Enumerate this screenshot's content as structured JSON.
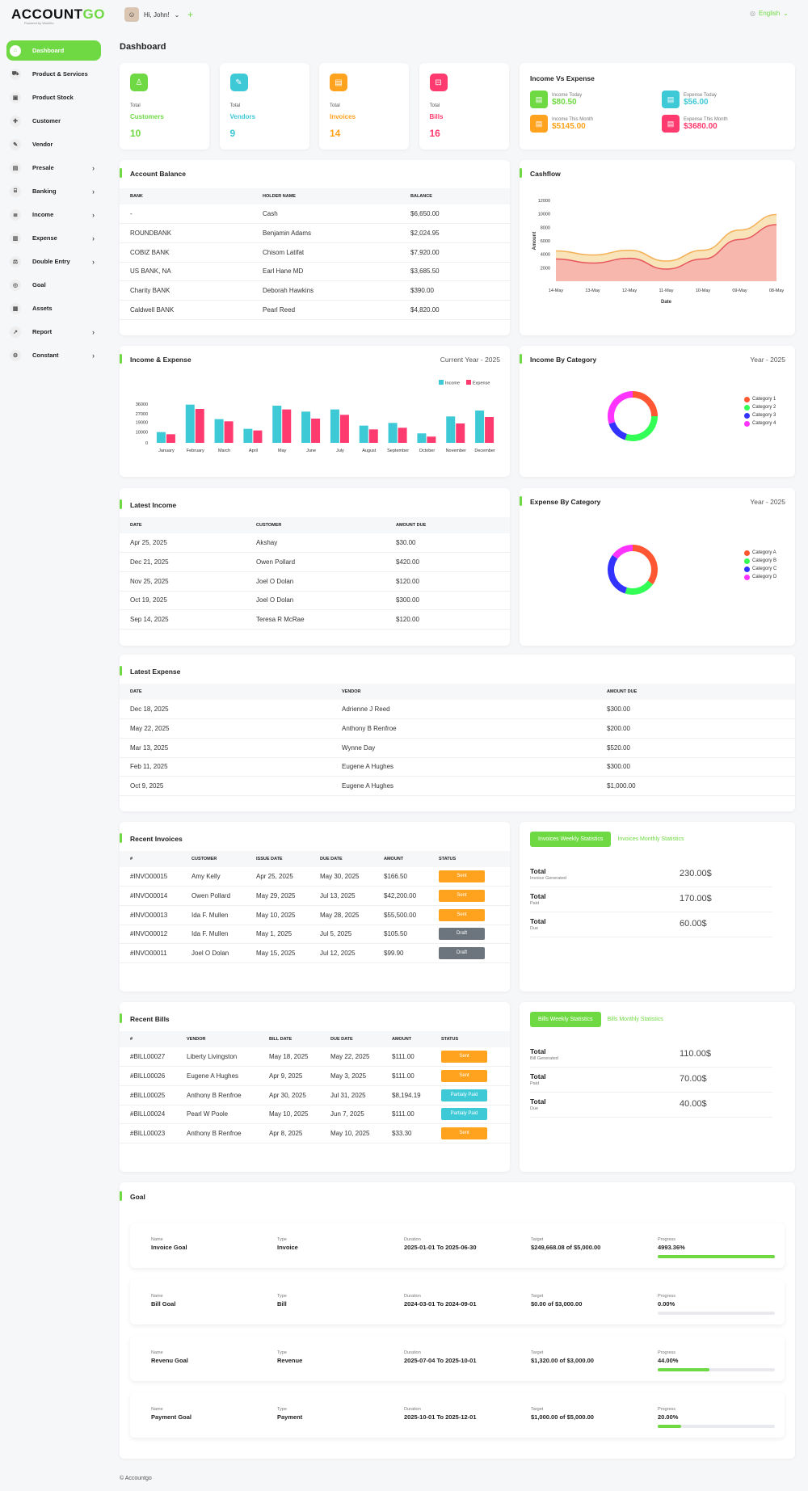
{
  "app": {
    "logo_a": "ACCOUNT",
    "logo_b": "GO",
    "logo_sub": "Powered by WorkDo",
    "greeting": "Hi, John!",
    "language": "English",
    "footer": "© Accountgo",
    "page_title": "Dashboard"
  },
  "sidebar": [
    {
      "label": "Dashboard",
      "icon": "home-icon",
      "active": true
    },
    {
      "label": "Product & Services",
      "icon": "cart-icon"
    },
    {
      "label": "Product Stock",
      "icon": "box-icon"
    },
    {
      "label": "Customer",
      "icon": "user-plus-icon"
    },
    {
      "label": "Vendor",
      "icon": "note-icon"
    },
    {
      "label": "Presale",
      "icon": "file-icon",
      "chev": true
    },
    {
      "label": "Banking",
      "icon": "bank-icon",
      "chev": true
    },
    {
      "label": "Income",
      "icon": "receipt-icon",
      "chev": true
    },
    {
      "label": "Expense",
      "icon": "wallet-icon",
      "chev": true
    },
    {
      "label": "Double Entry",
      "icon": "scale-icon",
      "chev": true
    },
    {
      "label": "Goal",
      "icon": "target-icon"
    },
    {
      "label": "Assets",
      "icon": "calculator-icon"
    },
    {
      "label": "Report",
      "icon": "chart-icon",
      "chev": true
    },
    {
      "label": "Constant",
      "icon": "gear-icon",
      "chev": true
    }
  ],
  "stats": [
    {
      "label": "Total",
      "name": "Customers",
      "value": "10",
      "color": "#6fd943"
    },
    {
      "label": "Total",
      "name": "Vendors",
      "value": "9",
      "color": "#3ec9d6"
    },
    {
      "label": "Total",
      "name": "Invoices",
      "value": "14",
      "color": "#ffa21d"
    },
    {
      "label": "Total",
      "name": "Bills",
      "value": "16",
      "color": "#ff3a6e"
    }
  ],
  "income_vs_expense": {
    "title": "Income Vs Expense",
    "items": [
      {
        "label": "Income Today",
        "value": "$80.50",
        "color": "#6fd943"
      },
      {
        "label": "Expense Today",
        "value": "$56.00",
        "color": "#3ec9d6"
      },
      {
        "label": "Income This Month",
        "value": "$5145.00",
        "color": "#ffa21d"
      },
      {
        "label": "Expense This Month",
        "value": "$3680.00",
        "color": "#ff3a6e"
      }
    ]
  },
  "account_balance": {
    "title": "Account Balance",
    "headers": [
      "BANK",
      "HOLDER NAME",
      "BALANCE"
    ],
    "rows": [
      [
        "-",
        "Cash",
        "$6,650.00"
      ],
      [
        "ROUNDBANK",
        "Benjamin Adams",
        "$2,024.95"
      ],
      [
        "COBIZ BANK",
        "Chisom Latifat",
        "$7,920.00"
      ],
      [
        "US BANK, NA",
        "Earl Hane MD",
        "$3,685.50"
      ],
      [
        "Charity BANK",
        "Deborah Hawkins",
        "$390.00"
      ],
      [
        "Caldwell BANK",
        "Pearl Reed",
        "$4,820.00"
      ]
    ]
  },
  "cashflow": {
    "title": "Cashflow",
    "chart_data": {
      "type": "area",
      "x": [
        "14-May",
        "13-May",
        "12-May",
        "11-May",
        "10-May",
        "09-May",
        "08-May"
      ],
      "xlabel": "Date",
      "ylabel": "Amount",
      "yticks": [
        2000,
        4000,
        6000,
        8000,
        10000,
        12000
      ],
      "ylim": [
        0,
        12000
      ],
      "series": [
        {
          "values": [
            4500,
            3900,
            4600,
            3000,
            4600,
            7600,
            9900
          ]
        },
        {
          "values": [
            3300,
            2700,
            3400,
            1800,
            3300,
            6200,
            8400
          ]
        }
      ]
    }
  },
  "income_expense": {
    "title": "Income & Expense",
    "subtitle": "Current Year - 2025",
    "chart_data": {
      "type": "bar",
      "categories": [
        "January",
        "February",
        "March",
        "April",
        "May",
        "June",
        "July",
        "August",
        "September",
        "October",
        "November",
        "December"
      ],
      "yticks": [
        0,
        10000,
        19000,
        27000,
        36000
      ],
      "ylim": [
        0,
        36000
      ],
      "series": [
        {
          "name": "Income",
          "color": "#3ec9d6",
          "values": [
            10000,
            35500,
            22000,
            13000,
            34500,
            29000,
            31000,
            16000,
            18500,
            8800,
            24500,
            30000
          ]
        },
        {
          "name": "Expense",
          "color": "#ff3a6e",
          "values": [
            8000,
            31500,
            20000,
            11500,
            31000,
            22500,
            26000,
            12500,
            14000,
            5800,
            18000,
            24000
          ]
        }
      ]
    }
  },
  "income_category": {
    "title": "Income By Category",
    "subtitle": "Year - 2025",
    "chart_data": {
      "type": "pie",
      "categories": [
        "Category 1",
        "Category 2",
        "Category 3",
        "Category 4"
      ],
      "values": [
        25,
        30,
        15,
        30
      ],
      "colors": [
        "#ff5733",
        "#33ff57",
        "#3333ff",
        "#ff33ff"
      ]
    }
  },
  "expense_category": {
    "title": "Expense By Category",
    "subtitle": "Year - 2025",
    "chart_data": {
      "type": "pie",
      "categories": [
        "Category A",
        "Category B",
        "Category C",
        "Category D"
      ],
      "values": [
        35,
        20,
        30,
        15
      ],
      "colors": [
        "#ff5733",
        "#33ff57",
        "#3333ff",
        "#ff33ff"
      ]
    }
  },
  "latest_income": {
    "title": "Latest Income",
    "headers": [
      "DATE",
      "CUSTOMER",
      "AMOUNT DUE"
    ],
    "rows": [
      [
        "Apr 25, 2025",
        "Akshay",
        "$30.00"
      ],
      [
        "Dec 21, 2025",
        "Owen Pollard",
        "$420.00"
      ],
      [
        "Nov 25, 2025",
        "Joel O Dolan",
        "$120.00"
      ],
      [
        "Oct 19, 2025",
        "Joel O Dolan",
        "$300.00"
      ],
      [
        "Sep 14, 2025",
        "Teresa R McRae",
        "$120.00"
      ]
    ]
  },
  "latest_expense": {
    "title": "Latest Expense",
    "headers": [
      "DATE",
      "VENDOR",
      "AMOUNT DUE"
    ],
    "rows": [
      [
        "Dec 18, 2025",
        "Adrienne J Reed",
        "$300.00"
      ],
      [
        "May 22, 2025",
        "Anthony B Renfroe",
        "$200.00"
      ],
      [
        "Mar 13, 2025",
        "Wynne Day",
        "$520.00"
      ],
      [
        "Feb 11, 2025",
        "Eugene A Hughes",
        "$300.00"
      ],
      [
        "Oct 9, 2025",
        "Eugene A Hughes",
        "$1,000.00"
      ]
    ]
  },
  "recent_invoices": {
    "title": "Recent Invoices",
    "headers": [
      "#",
      "CUSTOMER",
      "ISSUE DATE",
      "DUE DATE",
      "AMOUNT",
      "STATUS"
    ],
    "rows": [
      [
        "#INVO00015",
        "Amy Kelly",
        "Apr 25, 2025",
        "May 30, 2025",
        "$166.50",
        "Sent"
      ],
      [
        "#INVO00014",
        "Owen Pollard",
        "May 29, 2025",
        "Jul 13, 2025",
        "$42,200.00",
        "Sent"
      ],
      [
        "#INVO00013",
        "Ida F. Mullen",
        "May 10, 2025",
        "May 28, 2025",
        "$55,500.00",
        "Sent"
      ],
      [
        "#INVO00012",
        "Ida F. Mullen",
        "May 1, 2025",
        "Jul 5, 2025",
        "$105.50",
        "Draft"
      ],
      [
        "#INVO00011",
        "Joel O Dolan",
        "May 15, 2025",
        "Jul 12, 2025",
        "$99.90",
        "Draft"
      ]
    ]
  },
  "invoice_stats": {
    "tab_weekly": "Invoices Weekly Statistics",
    "tab_monthly": "Invoices Monthly Statistics",
    "items": [
      {
        "t": "Total",
        "s": "Invoice Generated",
        "v": "230.00$"
      },
      {
        "t": "Total",
        "s": "Paid",
        "v": "170.00$"
      },
      {
        "t": "Total",
        "s": "Due",
        "v": "60.00$"
      }
    ]
  },
  "recent_bills": {
    "title": "Recent Bills",
    "headers": [
      "#",
      "VENDOR",
      "BILL DATE",
      "DUE DATE",
      "AMOUNT",
      "STATUS"
    ],
    "rows": [
      [
        "#BILL00027",
        "Liberty Livingston",
        "May 18, 2025",
        "May 22, 2025",
        "$111.00",
        "Sent"
      ],
      [
        "#BILL00026",
        "Eugene A Hughes",
        "Apr 9, 2025",
        "May 3, 2025",
        "$111.00",
        "Sent"
      ],
      [
        "#BILL00025",
        "Anthony B Renfroe",
        "Apr 30, 2025",
        "Jul 31, 2025",
        "$8,194.19",
        "Partialy Paid"
      ],
      [
        "#BILL00024",
        "Pearl W Poole",
        "May 10, 2025",
        "Jun 7, 2025",
        "$111.00",
        "Partialy Paid"
      ],
      [
        "#BILL00023",
        "Anthony B Renfroe",
        "Apr 8, 2025",
        "May 10, 2025",
        "$33.30",
        "Sent"
      ]
    ]
  },
  "bill_stats": {
    "tab_weekly": "Bills Weekly Statistics",
    "tab_monthly": "Bills Monthly Statistics",
    "items": [
      {
        "t": "Total",
        "s": "Bill Generated",
        "v": "110.00$"
      },
      {
        "t": "Total",
        "s": "Paid",
        "v": "70.00$"
      },
      {
        "t": "Total",
        "s": "Due",
        "v": "40.00$"
      }
    ]
  },
  "status_colors": {
    "Sent": "#ffa21d",
    "Draft": "#6c757d",
    "Partialy Paid": "#3ec9d6"
  },
  "goals": {
    "title": "Goal",
    "labels": {
      "name": "Name",
      "type": "Type",
      "duration": "Duration",
      "target": "Target",
      "progress": "Progress"
    },
    "items": [
      {
        "name": "Invoice Goal",
        "type": "Invoice",
        "duration": "2025-01-01 To 2025-06-30",
        "target": "$249,668.08 of $5,000.00",
        "progress": "4993.36%",
        "fill": 100
      },
      {
        "name": "Bill Goal",
        "type": "Bill",
        "duration": "2024-03-01 To 2024-09-01",
        "target": "$0.00 of $3,000.00",
        "progress": "0.00%",
        "fill": 0
      },
      {
        "name": "Revenu Goal",
        "type": "Revenue",
        "duration": "2025-07-04 To 2025-10-01",
        "target": "$1,320.00 of $3,000.00",
        "progress": "44.00%",
        "fill": 44
      },
      {
        "name": "Payment Goal",
        "type": "Payment",
        "duration": "2025-10-01 To 2025-12-01",
        "target": "$1,000.00 of $5,000.00",
        "progress": "20.00%",
        "fill": 20
      }
    ]
  }
}
